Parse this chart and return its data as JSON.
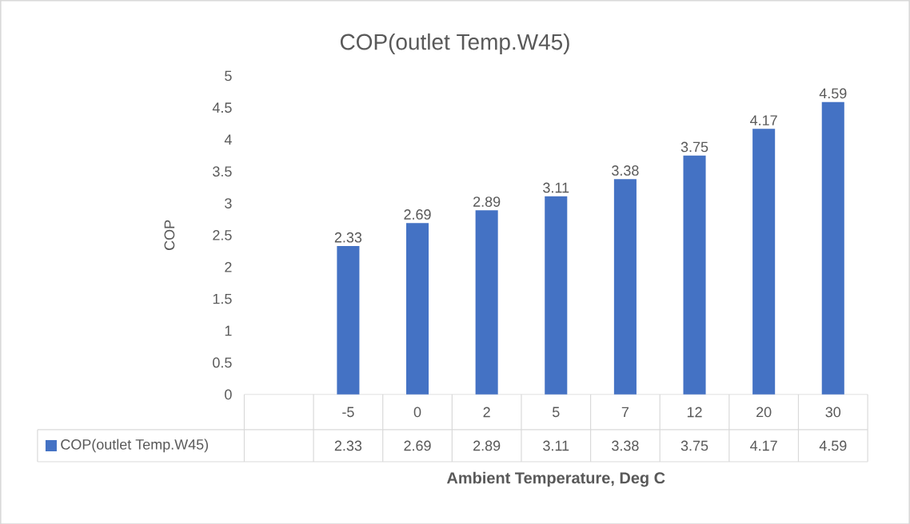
{
  "chart_data": {
    "type": "bar",
    "title": "COP(outlet Temp.W45)",
    "xlabel": "Ambient Temperature, Deg C",
    "ylabel": "COP",
    "categories": [
      null,
      "-5",
      "0",
      "2",
      "5",
      "7",
      "12",
      "20",
      "30"
    ],
    "series": [
      {
        "name": "COP(outlet Temp.W45)",
        "color": "#4472c4",
        "values": [
          null,
          2.33,
          2.69,
          2.89,
          3.11,
          3.38,
          3.75,
          4.17,
          4.59
        ],
        "value_labels": [
          null,
          "2.33",
          "2.69",
          "2.89",
          "3.11",
          "3.38",
          "3.75",
          "4.17",
          "4.59"
        ]
      }
    ],
    "ylim": [
      0,
      5
    ],
    "yticks": [
      0,
      0.5,
      1,
      1.5,
      2,
      2.5,
      3,
      3.5,
      4,
      4.5,
      5
    ],
    "legend": "bottom",
    "annotations": [
      "2.33",
      "2.69",
      "2.89",
      "3.11",
      "3.38",
      "3.75",
      "4.17",
      "4.59"
    ]
  }
}
